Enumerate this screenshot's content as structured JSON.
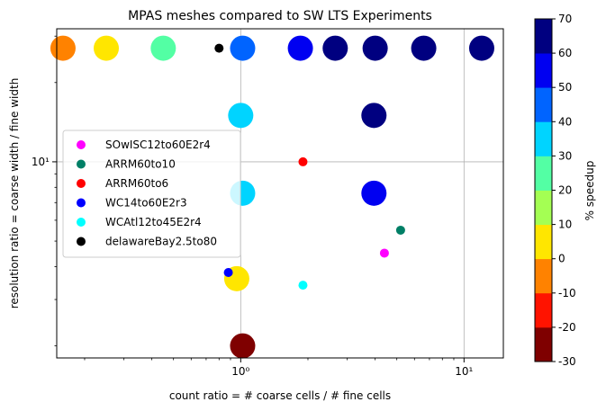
{
  "chart_data": {
    "type": "scatter",
    "title": "MPAS meshes compared to SW LTS Experiments",
    "xlabel": "count ratio = # coarse cells / # fine cells",
    "ylabel": "resolution ratio = coarse width / fine width",
    "xscale": "log",
    "yscale": "log",
    "xlim": [
      0.15,
      15
    ],
    "ylim": [
      1.8,
      32
    ],
    "x_tick_labels": [
      {
        "value": 1,
        "label": "10⁰"
      },
      {
        "value": 10,
        "label": "10¹"
      }
    ],
    "y_tick_labels": [
      {
        "value": 10,
        "label": "10¹"
      }
    ],
    "grid": true,
    "legend_position": "center-left",
    "colorbar": {
      "label": "% speedup",
      "min": -30,
      "max": 70,
      "ticks": [
        "-30",
        "-20",
        "-10",
        "0",
        "10",
        "20",
        "30",
        "40",
        "50",
        "60",
        "70"
      ],
      "colors": [
        "#7f0000",
        "#ff1300",
        "#ff8200",
        "#ffe600",
        "#a4ff53",
        "#53ffa4",
        "#00d4ff",
        "#0064ff",
        "#0000f1",
        "#000080"
      ]
    },
    "meshes": [
      {
        "name": "SOwISC12to60E2r4",
        "color": "#ff00ff",
        "x": 4.4,
        "y": 4.5
      },
      {
        "name": "ARRM60to10",
        "color": "#007f66",
        "x": 5.2,
        "y": 5.5
      },
      {
        "name": "ARRM60to6",
        "color": "#ff0000",
        "x": 1.9,
        "y": 10
      },
      {
        "name": "WC14to60E2r3",
        "color": "#0000ff",
        "x": 0.88,
        "y": 3.8
      },
      {
        "name": "WCAtl12to45E2r4",
        "color": "#00ffff",
        "x": 1.9,
        "y": 3.4
      },
      {
        "name": "delawareBay2.5to80",
        "color": "#000000",
        "x": 0.8,
        "y": 27
      }
    ],
    "experiments": [
      {
        "x": 0.16,
        "y": 27,
        "speedup": -5
      },
      {
        "x": 0.25,
        "y": 27,
        "speedup": 5
      },
      {
        "x": 0.45,
        "y": 27,
        "speedup": 25
      },
      {
        "x": 1.02,
        "y": 27,
        "speedup": 45
      },
      {
        "x": 1.85,
        "y": 27,
        "speedup": 55
      },
      {
        "x": 2.65,
        "y": 27,
        "speedup": 65
      },
      {
        "x": 4.0,
        "y": 27,
        "speedup": 65
      },
      {
        "x": 6.6,
        "y": 27,
        "speedup": 65
      },
      {
        "x": 12,
        "y": 27,
        "speedup": 65
      },
      {
        "x": 1.0,
        "y": 15,
        "speedup": 35
      },
      {
        "x": 3.95,
        "y": 15,
        "speedup": 65
      },
      {
        "x": 1.02,
        "y": 7.6,
        "speedup": 35
      },
      {
        "x": 3.95,
        "y": 7.6,
        "speedup": 55
      },
      {
        "x": 0.96,
        "y": 3.6,
        "speedup": 5
      },
      {
        "x": 1.02,
        "y": 2.0,
        "speedup": -25
      }
    ]
  }
}
